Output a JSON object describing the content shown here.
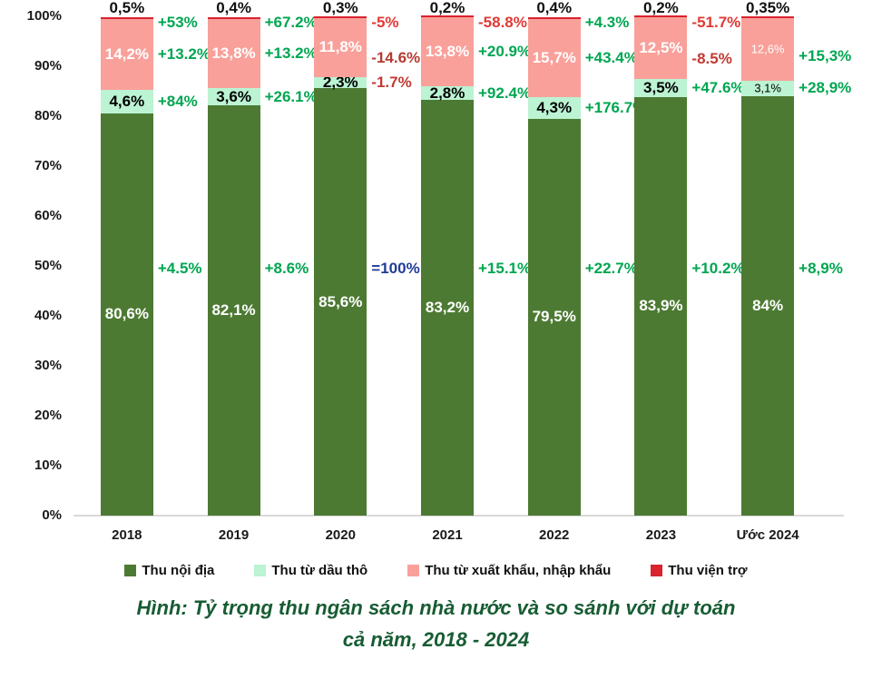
{
  "y_axis": {
    "tick_labels": [
      "100%",
      "90%",
      "80%",
      "70%",
      "60%",
      "50%",
      "40%",
      "30%",
      "20%",
      "10%",
      "0%"
    ]
  },
  "caption": {
    "line1": "Hình: Tỷ trọng thu ngân sách nhà nước và so sánh với dự toán",
    "line2": "cả năm, 2018 - 2024"
  },
  "chart_data": {
    "type": "bar",
    "variant": "stacked-percent",
    "title": "Hình: Tỷ trọng thu ngân sách nhà nước và so sánh với dự toán cả năm, 2018 - 2024",
    "xlabel": "",
    "ylabel": "",
    "ylim": [
      0,
      100
    ],
    "grid": false,
    "legend_position": "bottom",
    "categories": [
      "2018",
      "2019",
      "2020",
      "2021",
      "2022",
      "2023",
      "Ước 2024"
    ],
    "estimate_category_index": 6,
    "series": [
      {
        "name": "Thu nội địa",
        "color": "#4d7a33",
        "label_text_color": "#ffffff",
        "values": [
          80.6,
          82.1,
          85.6,
          83.2,
          79.5,
          83.9,
          84
        ],
        "value_labels": [
          "80,6%",
          "82,1%",
          "85,6%",
          "83,2%",
          "79,5%",
          "83,9%",
          "84%"
        ],
        "vs_estimate_annotations": [
          {
            "text": "+4.5%",
            "color": "#00a651"
          },
          {
            "text": "+8.6%",
            "color": "#00a651"
          },
          {
            "text": "=100%",
            "color": "#1f3d99"
          },
          {
            "text": "+15.1%",
            "color": "#00a651"
          },
          {
            "text": "+22.7%",
            "color": "#00a651"
          },
          {
            "text": "+10.2%",
            "color": "#00a651"
          },
          {
            "text": "+8,9%",
            "color": "#00a651"
          }
        ]
      },
      {
        "name": "Thu từ dầu thô",
        "color": "#bbf3d3",
        "label_text_color": "#000000",
        "values": [
          4.6,
          3.6,
          2.3,
          2.8,
          4.3,
          3.5,
          3.1
        ],
        "value_labels": [
          "4,6%",
          "3,6%",
          "2,3%",
          "2,8%",
          "4,3%",
          "3,5%",
          "3,1%"
        ],
        "vs_estimate_annotations": [
          {
            "text": "+84%",
            "color": "#00a651"
          },
          {
            "text": "+26.1%",
            "color": "#00a651"
          },
          {
            "text": "-1.7%",
            "color": "#c23a33"
          },
          {
            "text": "+92.4%",
            "color": "#00a651"
          },
          {
            "text": "+176.7%",
            "color": "#00a651"
          },
          {
            "text": "+47.6%",
            "color": "#00a651"
          },
          {
            "text": "+28,9%",
            "color": "#00a651"
          }
        ]
      },
      {
        "name": "Thu từ xuất khẩu, nhập khẩu",
        "color": "#f9a09a",
        "label_text_color": "#ffffff",
        "values": [
          14.2,
          13.8,
          11.8,
          13.8,
          15.7,
          12.5,
          12.6
        ],
        "value_labels": [
          "14,2%",
          "13,8%",
          "11,8%",
          "13,8%",
          "15,7%",
          "12,5%",
          "12,6%"
        ],
        "vs_estimate_annotations": [
          {
            "text": "+13.2%",
            "color": "#00a651"
          },
          {
            "text": "+13.2%",
            "color": "#00a651"
          },
          {
            "text": "-14.6%",
            "color": "#b43a32",
            "dy": 12
          },
          {
            "text": "+20.9%",
            "color": "#00a651"
          },
          {
            "text": "+43.4%",
            "color": "#00a651"
          },
          {
            "text": "-8.5%",
            "color": "#c23a33",
            "dy": 12
          },
          {
            "text": "+15,3%",
            "color": "#00a651",
            "dy": 8
          }
        ]
      },
      {
        "name": "Thu viện trợ",
        "color": "#d9232e",
        "label_text_color": "#000000",
        "values": [
          0.5,
          0.4,
          0.3,
          0.2,
          0.4,
          0.2,
          0.35
        ],
        "value_labels": [
          "0,5%",
          "0,4%",
          "0,3%",
          "0,2%",
          "0,4%",
          "0,2%",
          "0,35%"
        ],
        "vs_estimate_annotations": [
          {
            "text": "+53%",
            "color": "#00a651"
          },
          {
            "text": "+67.2%",
            "color": "#00a651"
          },
          {
            "text": "-5%",
            "color": "#e03a34"
          },
          {
            "text": "-58.8%",
            "color": "#e03a34"
          },
          {
            "text": "+4.3%",
            "color": "#00a651"
          },
          {
            "text": "-51.7%",
            "color": "#e03a34"
          },
          null
        ]
      }
    ]
  }
}
